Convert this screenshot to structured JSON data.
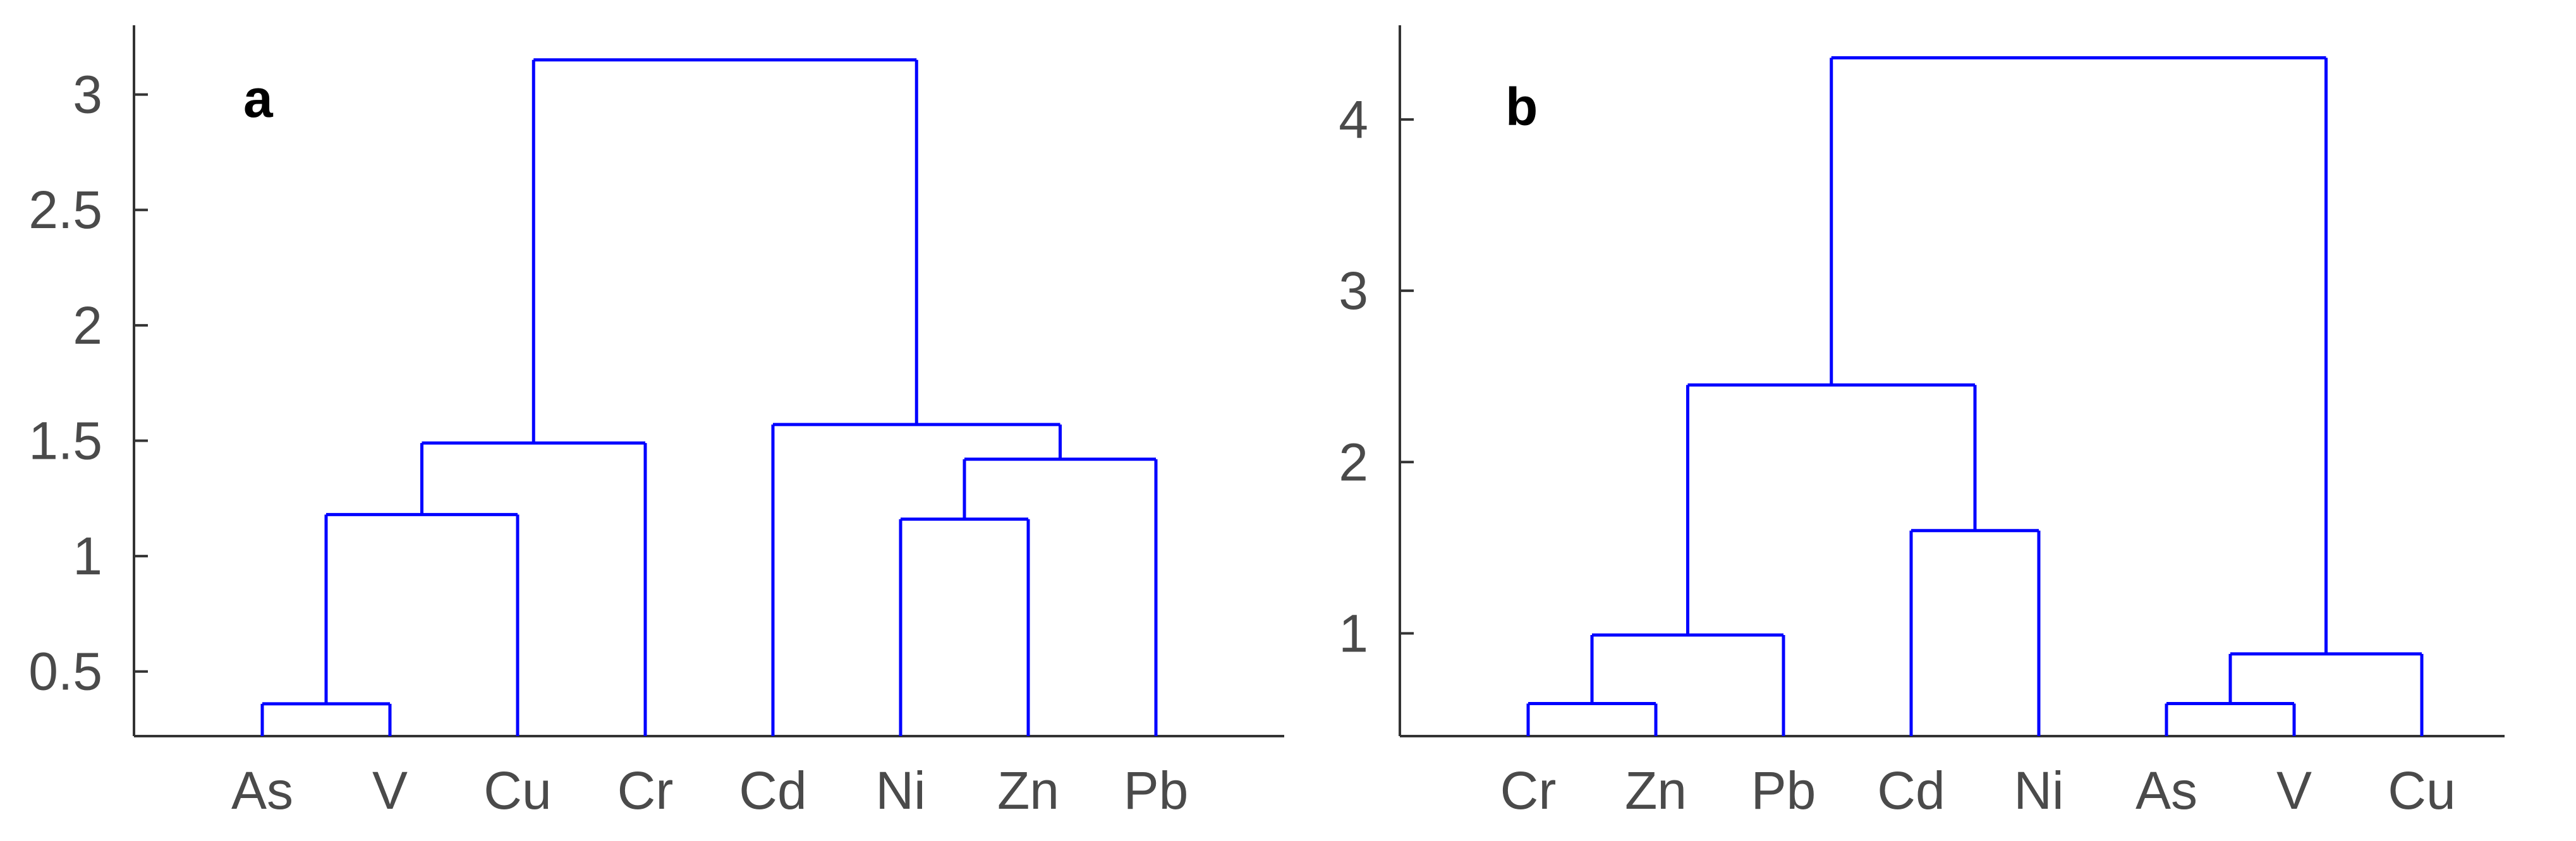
{
  "chart_data": [
    {
      "type": "dendrogram",
      "panel_label": "a",
      "leaves": [
        "As",
        "V",
        "Cu",
        "Cr",
        "Cd",
        "Ni",
        "Zn",
        "Pb"
      ],
      "yticks": [
        0.5,
        1,
        1.5,
        2,
        2.5,
        3
      ],
      "ytick_labels": [
        "0.5",
        "1",
        "1.5",
        "2",
        "2.5",
        "3"
      ],
      "ylim": [
        0.22,
        3.3
      ],
      "merges": [
        {
          "members": [
            "As",
            "V"
          ],
          "height": 0.36
        },
        {
          "members": [
            "As",
            "V",
            "Cu"
          ],
          "height": 1.18
        },
        {
          "members": [
            "Ni",
            "Zn"
          ],
          "height": 1.16
        },
        {
          "members": [
            "Ni",
            "Zn",
            "Pb"
          ],
          "height": 1.42
        },
        {
          "members": [
            "As",
            "V",
            "Cu",
            "Cr"
          ],
          "height": 1.49
        },
        {
          "members": [
            "Cd",
            "Ni",
            "Zn",
            "Pb"
          ],
          "height": 1.57
        },
        {
          "members": [
            "As",
            "V",
            "Cu",
            "Cr",
            "Cd",
            "Ni",
            "Zn",
            "Pb"
          ],
          "height": 3.15
        }
      ],
      "color": "#0000ff"
    },
    {
      "type": "dendrogram",
      "panel_label": "b",
      "leaves": [
        "Cr",
        "Zn",
        "Pb",
        "Cd",
        "Ni",
        "As",
        "V",
        "Cu"
      ],
      "yticks": [
        1,
        2,
        3,
        4
      ],
      "ytick_labels": [
        "1",
        "2",
        "3",
        "4"
      ],
      "ylim": [
        0.4,
        4.55
      ],
      "merges": [
        {
          "members": [
            "Cr",
            "Zn"
          ],
          "height": 0.59
        },
        {
          "members": [
            "Cr",
            "Zn",
            "Pb"
          ],
          "height": 0.99
        },
        {
          "members": [
            "Cd",
            "Ni"
          ],
          "height": 1.6
        },
        {
          "members": [
            "Cr",
            "Zn",
            "Pb",
            "Cd",
            "Ni"
          ],
          "height": 2.45
        },
        {
          "members": [
            "As",
            "V"
          ],
          "height": 0.59
        },
        {
          "members": [
            "As",
            "V",
            "Cu"
          ],
          "height": 0.88
        },
        {
          "members": [
            "Cr",
            "Zn",
            "Pb",
            "Cd",
            "Ni",
            "As",
            "V",
            "Cu"
          ],
          "height": 4.36
        }
      ],
      "color": "#0000ff"
    }
  ]
}
